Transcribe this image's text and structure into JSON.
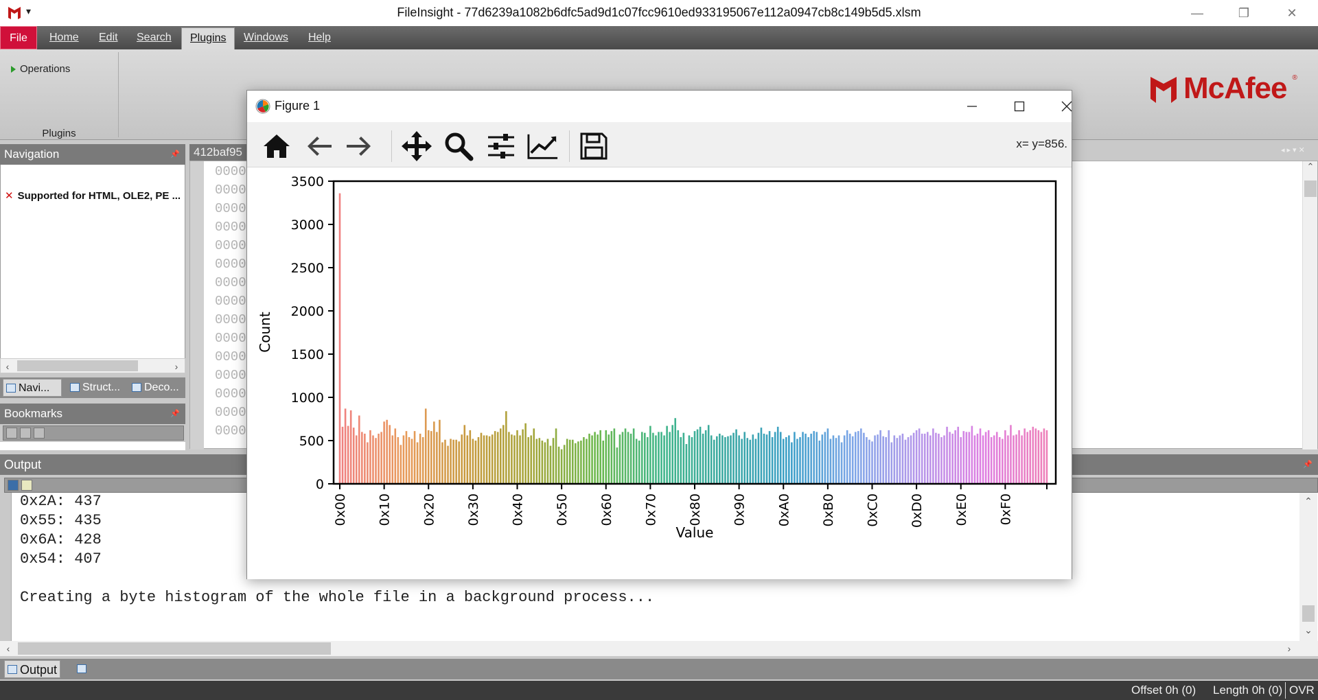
{
  "window": {
    "title": "FileInsight - 77d6239a1082b6dfc5ad9d1c07fcc9610ed933195067e112a0947cb8c149b5d5.xlsm",
    "minimize": "—",
    "restore": "❐",
    "close": "✕"
  },
  "menu": {
    "file": "File",
    "home": "Home",
    "edit": "Edit",
    "search": "Search",
    "plugins": "Plugins",
    "windows": "Windows",
    "help": "Help"
  },
  "ribbon": {
    "operations_label": "Operations",
    "group_label": "Plugins",
    "brand": "McAfee"
  },
  "navigation": {
    "header": "Navigation",
    "item": "Supported for HTML, OLE2, PE ...",
    "tabs": [
      "Navi...",
      "Struct...",
      "Deco..."
    ]
  },
  "bookmarks": {
    "header": "Bookmarks"
  },
  "editor": {
    "tab_label": "412baf95",
    "hex_lines": [
      "0000",
      "0000",
      "0000",
      "0000",
      "0000",
      "0000",
      "0000",
      "0000",
      "0000",
      "0000",
      "0000",
      "0000",
      "0000",
      "0000",
      "0000",
      "0000"
    ]
  },
  "output": {
    "header": "Output",
    "lines": [
      "0x2A: 437",
      "0x55: 435",
      "0x6A: 428",
      "0x54: 407",
      "",
      "Creating a byte histogram of the whole file in a background process..."
    ],
    "tab": "Output"
  },
  "status": {
    "offset": "Offset 0h (0)",
    "length": "Length 0h (0)",
    "mode": "OVR"
  },
  "figure": {
    "title": "Figure 1",
    "coords": "x= y=856.",
    "toolbar_icons": [
      "home-icon",
      "back-arrow-icon",
      "forward-arrow-icon",
      "pan-icon",
      "zoom-icon",
      "configure-subplots-icon",
      "edit-axis-icon",
      "save-icon"
    ]
  },
  "chart_data": {
    "type": "bar",
    "xlabel": "Value",
    "ylabel": "Count",
    "ylim": [
      0,
      3500
    ],
    "yticks": [
      0,
      500,
      1000,
      1500,
      2000,
      2500,
      3000,
      3500
    ],
    "xticks": [
      "0x00",
      "0x10",
      "0x20",
      "0x30",
      "0x40",
      "0x50",
      "0x60",
      "0x70",
      "0x80",
      "0x90",
      "0xA0",
      "0xB0",
      "0xC0",
      "0xD0",
      "0xE0",
      "0xF0"
    ],
    "x": [
      0,
      1,
      2,
      3,
      4,
      5,
      6,
      7,
      8,
      9,
      10,
      11,
      12,
      13,
      14,
      15,
      16,
      17,
      18,
      19,
      20,
      21,
      22,
      23,
      24,
      25,
      26,
      27,
      28,
      29,
      30,
      31,
      32,
      33,
      34,
      35,
      36,
      37,
      38,
      39,
      40,
      41,
      42,
      43,
      44,
      45,
      46,
      47,
      48,
      49,
      50,
      51,
      52,
      53,
      54,
      55,
      56,
      57,
      58,
      59,
      60,
      61,
      62,
      63,
      64,
      65,
      66,
      67,
      68,
      69,
      70,
      71,
      72,
      73,
      74,
      75,
      76,
      77,
      78,
      79,
      80,
      81,
      82,
      83,
      84,
      85,
      86,
      87,
      88,
      89,
      90,
      91,
      92,
      93,
      94,
      95,
      96,
      97,
      98,
      99,
      100,
      101,
      102,
      103,
      104,
      105,
      106,
      107,
      108,
      109,
      110,
      111,
      112,
      113,
      114,
      115,
      116,
      117,
      118,
      119,
      120,
      121,
      122,
      123,
      124,
      125,
      126,
      127,
      128,
      129,
      130,
      131,
      132,
      133,
      134,
      135,
      136,
      137,
      138,
      139,
      140,
      141,
      142,
      143,
      144,
      145,
      146,
      147,
      148,
      149,
      150,
      151,
      152,
      153,
      154,
      155,
      156,
      157,
      158,
      159,
      160,
      161,
      162,
      163,
      164,
      165,
      166,
      167,
      168,
      169,
      170,
      171,
      172,
      173,
      174,
      175,
      176,
      177,
      178,
      179,
      180,
      181,
      182,
      183,
      184,
      185,
      186,
      187,
      188,
      189,
      190,
      191,
      192,
      193,
      194,
      195,
      196,
      197,
      198,
      199,
      200,
      201,
      202,
      203,
      204,
      205,
      206,
      207,
      208,
      209,
      210,
      211,
      212,
      213,
      214,
      215,
      216,
      217,
      218,
      219,
      220,
      221,
      222,
      223,
      224,
      225,
      226,
      227,
      228,
      229,
      230,
      231,
      232,
      233,
      234,
      235,
      236,
      237,
      238,
      239,
      240,
      241,
      242,
      243,
      244,
      245,
      246,
      247,
      248,
      249,
      250,
      251,
      252,
      253,
      254,
      255
    ],
    "values": [
      3360,
      660,
      870,
      670,
      850,
      650,
      560,
      790,
      600,
      580,
      480,
      620,
      560,
      530,
      580,
      600,
      720,
      740,
      680,
      560,
      640,
      540,
      450,
      560,
      610,
      540,
      520,
      610,
      480,
      580,
      540,
      870,
      620,
      610,
      720,
      600,
      740,
      480,
      510,
      440,
      520,
      510,
      510,
      490,
      570,
      680,
      560,
      620,
      520,
      500,
      540,
      590,
      560,
      560,
      550,
      570,
      610,
      600,
      640,
      680,
      840,
      600,
      570,
      560,
      620,
      560,
      630,
      700,
      540,
      560,
      640,
      520,
      530,
      500,
      480,
      520,
      440,
      530,
      640,
      430,
      400,
      450,
      520,
      510,
      510,
      470,
      490,
      500,
      540,
      520,
      580,
      560,
      600,
      570,
      620,
      500,
      620,
      570,
      610,
      640,
      420,
      570,
      600,
      640,
      600,
      580,
      640,
      520,
      500,
      600,
      590,
      540,
      670,
      590,
      560,
      600,
      600,
      560,
      670,
      600,
      680,
      760,
      620,
      540,
      590,
      460,
      560,
      540,
      610,
      630,
      660,
      580,
      620,
      680,
      560,
      510,
      550,
      580,
      560,
      540,
      550,
      560,
      590,
      630,
      560,
      520,
      600,
      530,
      510,
      570,
      520,
      590,
      650,
      580,
      570,
      610,
      540,
      600,
      660,
      600,
      520,
      540,
      560,
      480,
      600,
      520,
      540,
      600,
      580,
      540,
      580,
      610,
      600,
      500,
      570,
      600,
      640,
      520,
      560,
      530,
      560,
      480,
      560,
      620,
      580,
      550,
      600,
      610,
      640,
      590,
      540,
      510,
      490,
      560,
      570,
      620,
      550,
      540,
      620,
      480,
      560,
      530,
      560,
      580,
      510,
      540,
      560,
      590,
      620,
      640,
      580,
      580,
      600,
      560,
      640,
      590,
      580,
      540,
      560,
      660,
      600,
      580,
      620,
      660,
      540,
      610,
      600,
      600,
      670,
      560,
      580,
      640,
      560,
      600,
      620,
      540,
      560,
      600,
      540,
      520,
      620,
      560,
      680,
      560,
      570,
      620,
      560,
      640,
      600,
      620,
      660,
      640,
      620,
      600,
      640,
      620
    ],
    "grid": false
  }
}
